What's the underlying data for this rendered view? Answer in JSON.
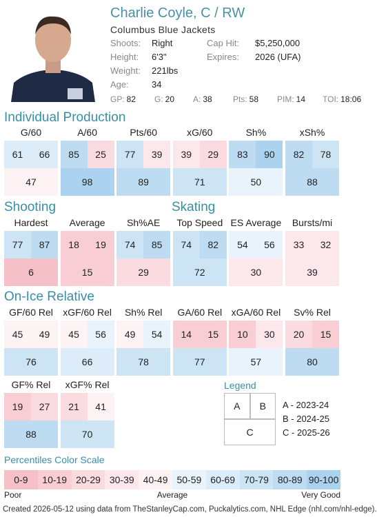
{
  "header": {
    "name": "Charlie Coyle, C / RW",
    "team": "Columbus Blue Jackets",
    "info": [
      {
        "label": "Shoots:",
        "value": "Right"
      },
      {
        "label": "Height:",
        "value": "6'3\""
      },
      {
        "label": "Weight:",
        "value": "221lbs"
      },
      {
        "label": "Age:",
        "value": "34"
      },
      {
        "label": "Cap Hit:",
        "value": "$5,250,000"
      },
      {
        "label": "Expires:",
        "value": "2026 (UFA)"
      }
    ],
    "stats": [
      {
        "label": "GP:",
        "value": "82"
      },
      {
        "label": "G:",
        "value": "20"
      },
      {
        "label": "A:",
        "value": "38"
      },
      {
        "label": "Pts:",
        "value": "58"
      },
      {
        "label": "PIM:",
        "value": "14"
      },
      {
        "label": "TOI:",
        "value": "18:06"
      }
    ]
  },
  "sections": [
    {
      "title": "Individual Production",
      "metrics": [
        {
          "label": "G/60",
          "values": [
            61,
            66,
            47
          ]
        },
        {
          "label": "A/60",
          "values": [
            85,
            25,
            98
          ]
        },
        {
          "label": "Pts/60",
          "values": [
            77,
            39,
            89
          ]
        },
        {
          "label": "xG/60",
          "values": [
            39,
            29,
            71
          ]
        },
        {
          "label": "Sh%",
          "values": [
            83,
            90,
            50
          ]
        },
        {
          "label": "xSh%",
          "values": [
            82,
            78,
            88
          ]
        }
      ]
    },
    {
      "title": "Shooting",
      "metrics": [
        {
          "label": "Hardest",
          "values": [
            77,
            87,
            6
          ]
        },
        {
          "label": "Average",
          "values": [
            18,
            19,
            15
          ]
        },
        {
          "label": "Sh%AE",
          "values": [
            74,
            85,
            29
          ]
        }
      ]
    },
    {
      "title": "Skating",
      "metrics": [
        {
          "label": "Top Speed",
          "values": [
            74,
            82,
            72
          ]
        },
        {
          "label": "ES Average",
          "values": [
            54,
            56,
            30
          ]
        },
        {
          "label": "Bursts/mi",
          "values": [
            33,
            32,
            39
          ]
        }
      ]
    },
    {
      "title": "On-Ice Relative",
      "metrics": [
        {
          "label": "GF/60 Rel",
          "values": [
            45,
            49,
            76
          ]
        },
        {
          "label": "xGF/60 Rel",
          "values": [
            45,
            56,
            66
          ]
        },
        {
          "label": "Sh% Rel",
          "values": [
            49,
            54,
            78
          ]
        },
        {
          "label": "GA/60 Rel",
          "values": [
            14,
            15,
            77
          ]
        },
        {
          "label": "xGA/60 Rel",
          "values": [
            10,
            30,
            57
          ]
        },
        {
          "label": "Sv% Rel",
          "values": [
            20,
            15,
            80
          ]
        },
        {
          "label": "GF% Rel",
          "values": [
            19,
            27,
            88
          ]
        },
        {
          "label": "xGF% Rel",
          "values": [
            21,
            41,
            70
          ]
        }
      ]
    }
  ],
  "legend": {
    "title": "Legend",
    "keys": [
      "A",
      "B",
      "C"
    ],
    "entries": [
      "A - 2023-24",
      "B - 2024-25",
      "C - 2025-26"
    ]
  },
  "color_scale": {
    "title": "Percentiles Color Scale",
    "bins": [
      "0-9",
      "10-19",
      "20-29",
      "30-39",
      "40-49",
      "50-59",
      "60-69",
      "70-79",
      "80-89",
      "90-100"
    ],
    "colors": [
      "#f5c0c8",
      "#f8ced4",
      "#fadbe0",
      "#fce7ea",
      "#fdf2f4",
      "#e9f3fb",
      "#dcecf8",
      "#cde4f5",
      "#bddcf2",
      "#abd3ef"
    ],
    "labels": [
      "Poor",
      "Average",
      "Very Good"
    ]
  },
  "footer": "Created 2026-05-12 using data from TheStanleyCap.com, Puckalytics.com, NHL Edge (nhl.com/nhl-edge)."
}
